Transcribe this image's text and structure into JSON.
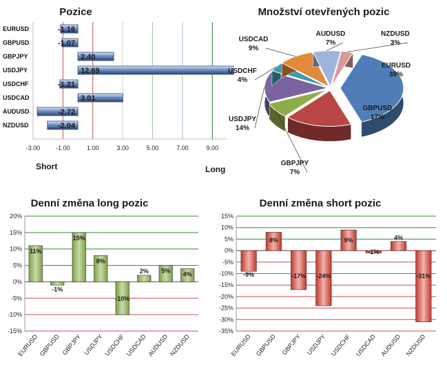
{
  "chart_data": [
    {
      "id": "pozice",
      "type": "bar",
      "orientation": "horizontal",
      "title": "Pozice",
      "categories": [
        "EURUSD",
        "GBPUSD",
        "GBPJPY",
        "USDJPY",
        "USDCHF",
        "USDCAD",
        "AUDUSD",
        "NZDUSD"
      ],
      "values": [
        -1.16,
        -1.07,
        2.4,
        12.69,
        -1.21,
        3.01,
        -2.72,
        -2.04
      ],
      "value_labels": [
        "-1.16",
        "-1.07",
        "2.40",
        "12.69",
        "-1.21",
        "3.01",
        "-2.72",
        "-2.04"
      ],
      "xlim": [
        -3,
        10
      ],
      "ticks": [
        -3,
        -1,
        1,
        3,
        5,
        7,
        9
      ],
      "tick_labels": [
        "-3.00",
        "-1.00",
        "1.00",
        "3.00",
        "5.00",
        "7.00",
        "9.00"
      ],
      "short_label": "Short",
      "long_label": "Long",
      "colors": {
        "bar": "#6f8fc4",
        "bar_light": "#dbe6f7",
        "bar_border": "#2c4770",
        "red_line": "#c0504d",
        "green_line": "#2e7d32"
      }
    },
    {
      "id": "mnozstvi",
      "type": "pie",
      "title": "Množství otevřených pozic",
      "slices": [
        {
          "name": "EURUSD",
          "value": 39,
          "label": "39%",
          "color": "#4f7db8"
        },
        {
          "name": "GBPUSD",
          "value": 17,
          "label": "17%",
          "color": "#b94644"
        },
        {
          "name": "GBPJPY",
          "value": 7,
          "label": "7%",
          "color": "#8fac4a"
        },
        {
          "name": "USDJPY",
          "value": 14,
          "label": "14%",
          "color": "#7a64a0"
        },
        {
          "name": "USDCHF",
          "value": 4,
          "label": "4%",
          "color": "#3f9aaf"
        },
        {
          "name": "USDCAD",
          "value": 9,
          "label": "9%",
          "color": "#e08a3a"
        },
        {
          "name": "AUDUSD",
          "value": 7,
          "label": "7%",
          "color": "#9fb4da"
        },
        {
          "name": "NZDUSD",
          "value": 3,
          "label": "3%",
          "color": "#d89a98"
        }
      ]
    },
    {
      "id": "long",
      "type": "bar",
      "title": "Denní změna long pozic",
      "categories": [
        "EURUSD",
        "GBPUSD",
        "GBPJPY",
        "USDJPY",
        "USDCHF",
        "USDCAD",
        "AUDUSD",
        "NZDUSD"
      ],
      "values": [
        11,
        -1,
        15,
        8,
        -10,
        2,
        5,
        4
      ],
      "value_labels": [
        "11%",
        "-1%",
        "15%",
        "8%",
        "-10%",
        "2%",
        "5%",
        "4%"
      ],
      "ylim": [
        -15,
        20
      ],
      "ticks": [
        -15,
        -10,
        -5,
        0,
        5,
        10,
        15,
        20
      ],
      "tick_labels": [
        "-15%",
        "-10%",
        "-5%",
        "0%",
        "5%",
        "10%",
        "15%",
        "20%"
      ],
      "colors": {
        "bar": "#7fa04a",
        "bar_light": "#c8dba6",
        "grid_pos": "#2e8b3a",
        "grid_neg": "#c0504d",
        "zero": "#2e6b2e"
      }
    },
    {
      "id": "short",
      "type": "bar",
      "title": "Denní změna short pozic",
      "categories": [
        "EURUSD",
        "GBPUSD",
        "GBPJPY",
        "USDJPY",
        "USDCHF",
        "USDCAD",
        "AUDUSD",
        "NZDUSD"
      ],
      "values": [
        -9,
        8,
        -17,
        -24,
        9,
        -1,
        4,
        -31
      ],
      "value_labels": [
        "-9%",
        "8%",
        "-17%",
        "-24%",
        "9%",
        "-1%",
        "4%",
        "-31%"
      ],
      "ylim": [
        -35,
        15
      ],
      "ticks": [
        -35,
        -30,
        -25,
        -20,
        -15,
        -10,
        -5,
        0,
        5,
        10,
        15
      ],
      "tick_labels": [
        "-35%",
        "-30%",
        "-25%",
        "-20%",
        "-15%",
        "-10%",
        "-5%",
        "0%",
        "5%",
        "10%",
        "15%"
      ],
      "colors": {
        "bar": "#c0392b",
        "bar_light": "#f2b3ae",
        "grid_pos": "#2e8b3a",
        "grid_neg": "#c0504d",
        "zero": "#8b2020"
      }
    }
  ]
}
